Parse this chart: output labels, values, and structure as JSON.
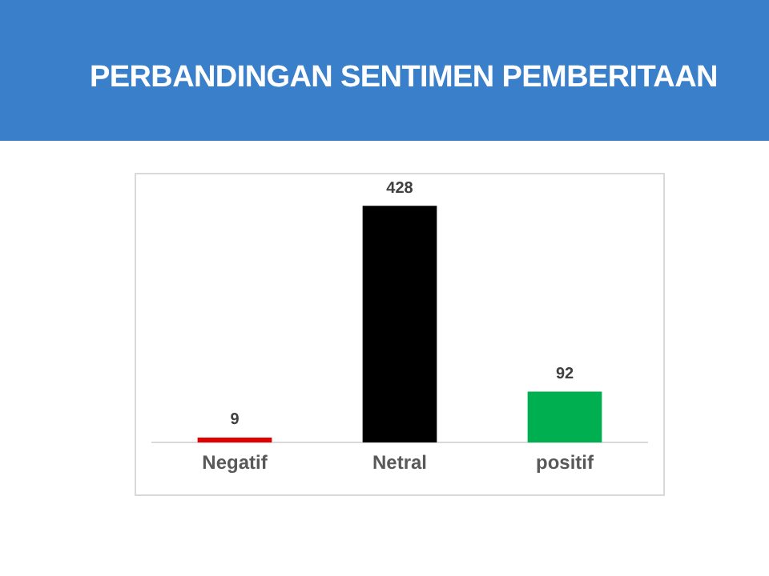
{
  "chart_data": {
    "type": "bar",
    "title": "PERBANDINGAN SENTIMEN PEMBERITAAN",
    "categories": [
      "Negatif",
      "Netral",
      "positif"
    ],
    "values": [
      9,
      428,
      92
    ],
    "colors": [
      "#e00000",
      "#000000",
      "#00b050"
    ],
    "data_labels": true,
    "grid": false,
    "legend": false
  }
}
